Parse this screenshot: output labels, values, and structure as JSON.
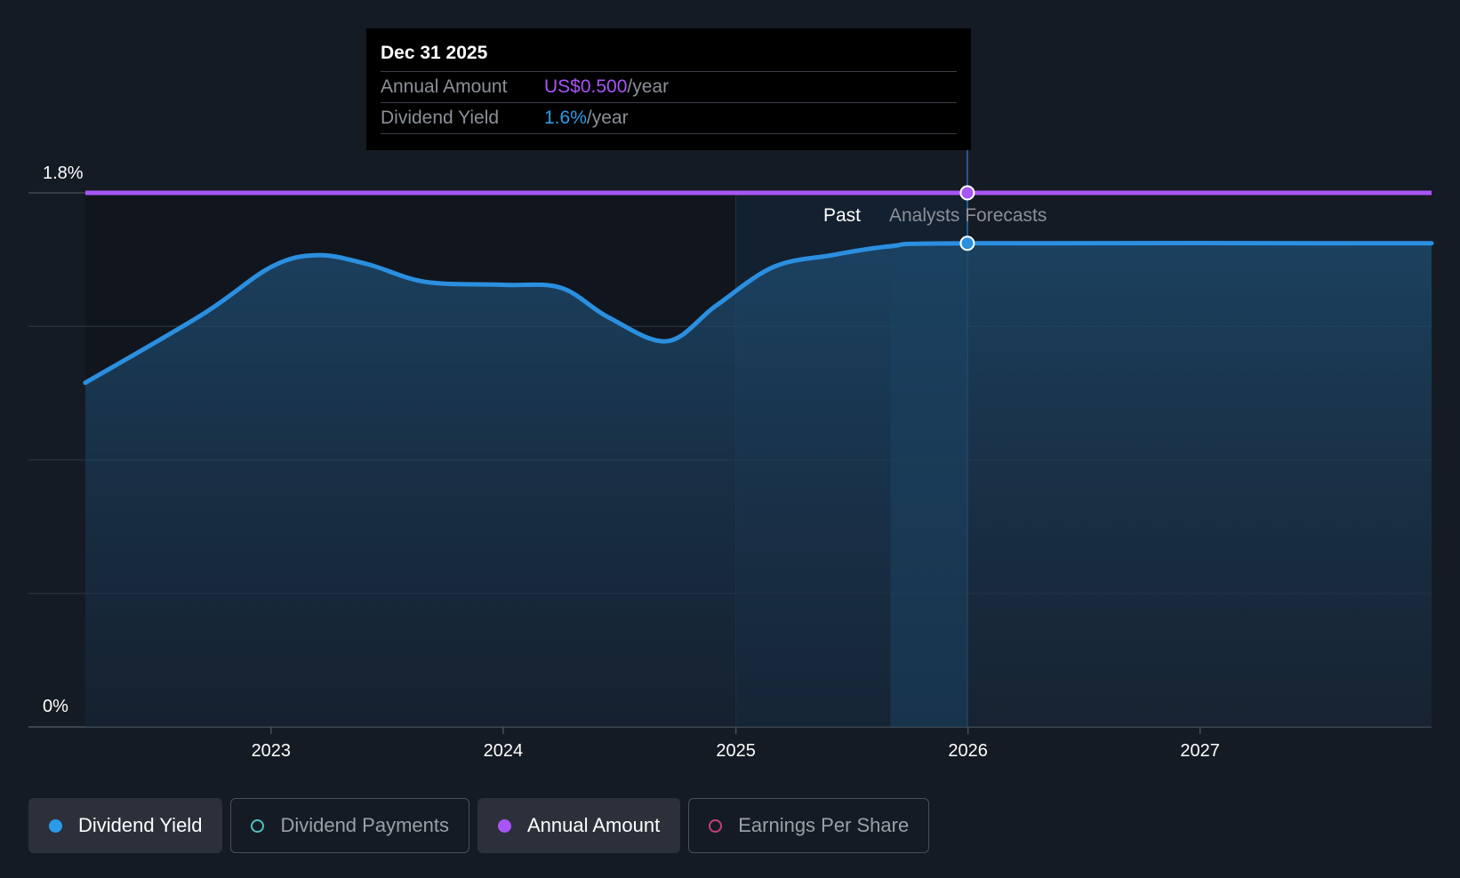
{
  "tooltip": {
    "date": "Dec 31 2025",
    "rows": [
      {
        "label": "Annual Amount",
        "value": "US$0.500",
        "unit": "/year"
      },
      {
        "label": "Dividend Yield",
        "value": "1.6%",
        "unit": "/year"
      }
    ]
  },
  "chart_data": {
    "type": "line",
    "y_tick_labels": [
      "1.8%",
      "0%"
    ],
    "ylim": [
      0,
      1.8
    ],
    "xlim": [
      "2022-03-15",
      "2027-12-31"
    ],
    "x_tick_labels": [
      "2023",
      "2024",
      "2025",
      "2026",
      "2027"
    ],
    "region_labels": {
      "past": "Past",
      "forecast": "Analysts Forecasts"
    },
    "highlight_date": "2025-12-31",
    "grid": true,
    "series": [
      {
        "name": "Dividend Yield",
        "color": "#2b8fe0",
        "points": [
          [
            "2022-03-15",
            1.16
          ],
          [
            "2022-09-15",
            1.39
          ],
          [
            "2023-01-01",
            1.55
          ],
          [
            "2023-03-15",
            1.59
          ],
          [
            "2023-06-01",
            1.56
          ],
          [
            "2023-09-01",
            1.5
          ],
          [
            "2024-01-01",
            1.49
          ],
          [
            "2024-04-01",
            1.48
          ],
          [
            "2024-06-15",
            1.38
          ],
          [
            "2024-09-15",
            1.3
          ],
          [
            "2024-12-01",
            1.42
          ],
          [
            "2025-03-01",
            1.55
          ],
          [
            "2025-06-01",
            1.59
          ],
          [
            "2025-09-01",
            1.62
          ],
          [
            "2025-12-31",
            1.63
          ],
          [
            "2027-12-31",
            1.63
          ]
        ]
      },
      {
        "name": "Annual Amount",
        "color": "#a855f7",
        "points": [
          [
            "2022-03-15",
            1.8
          ],
          [
            "2027-12-31",
            1.8
          ]
        ]
      }
    ]
  },
  "legend": [
    {
      "label": "Dividend Yield",
      "color": "#2b9be8",
      "active": true
    },
    {
      "label": "Dividend Payments",
      "color": "#4fc1bd",
      "active": false
    },
    {
      "label": "Annual Amount",
      "color": "#a855f7",
      "active": true
    },
    {
      "label": "Earnings Per Share",
      "color": "#c2407a",
      "active": false
    }
  ]
}
